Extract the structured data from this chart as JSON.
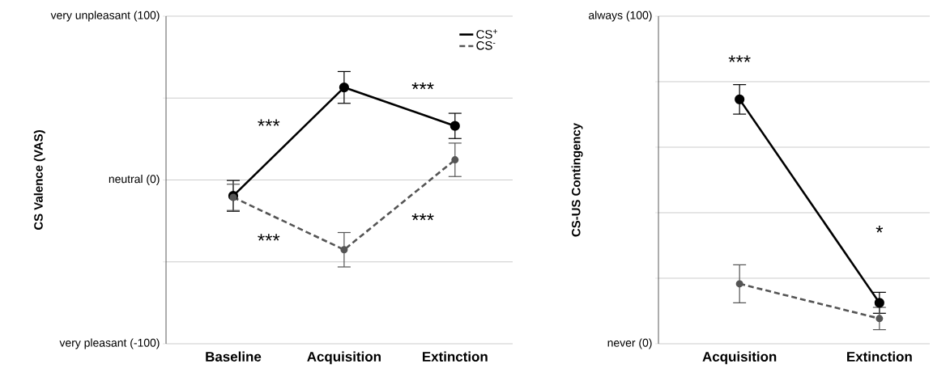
{
  "chart_data": [
    {
      "type": "line",
      "ylabel": "CS Valence (VAS)",
      "categories": [
        "Baseline",
        "Acquisition",
        "Extinction"
      ],
      "series": [
        {
          "name": "CS$^{+}$",
          "color": "#000000",
          "values": [
            -9.7,
            56.5,
            33
          ],
          "errors": [
            9.4,
            9.7,
            7.7
          ],
          "line_style": "solid"
        },
        {
          "name": "CS$^{-}$",
          "color": "#555555",
          "values": [
            -10.6,
            -42.6,
            12.3
          ],
          "errors": [
            8,
            10.5,
            10.2
          ],
          "line_style": "dashed"
        }
      ],
      "ylim": [
        -100,
        100
      ],
      "yticks": [
        {
          "value": -100,
          "label": "very pleasant (-100)"
        },
        {
          "value": -50,
          "label": null
        },
        {
          "value": 0,
          "label": "neutral (0)"
        },
        {
          "value": 50,
          "label": null
        },
        {
          "value": 100,
          "label": "very unpleasant (100)"
        }
      ],
      "grid": "y",
      "legend": "top right",
      "marker": "circle",
      "annotations": [
        "***",
        "***",
        "***",
        "***"
      ]
    },
    {
      "type": "line",
      "ylabel": "CS-US Contingency",
      "categories": [
        "Acquisition",
        "Extinction"
      ],
      "series": [
        {
          "color": "#000000",
          "values": [
            74.6,
            12.5
          ],
          "errors": [
            4.5,
            3.2
          ],
          "line_style": "solid"
        },
        {
          "color": "#555555",
          "values": [
            18.3,
            7.7
          ],
          "errors": [
            5.8,
            3.4
          ],
          "line_style": "dashed"
        }
      ],
      "ylim": [
        0,
        100
      ],
      "yticks": [
        {
          "value": 0,
          "label": "never (0)"
        },
        {
          "value": 20,
          "label": null
        },
        {
          "value": 40,
          "label": null
        },
        {
          "value": 60,
          "label": null
        },
        {
          "value": 80,
          "label": null
        },
        {
          "value": 100,
          "label": "always (100)"
        }
      ],
      "grid": "y",
      "marker": "circle",
      "annotations": [
        "***",
        "*"
      ]
    }
  ]
}
